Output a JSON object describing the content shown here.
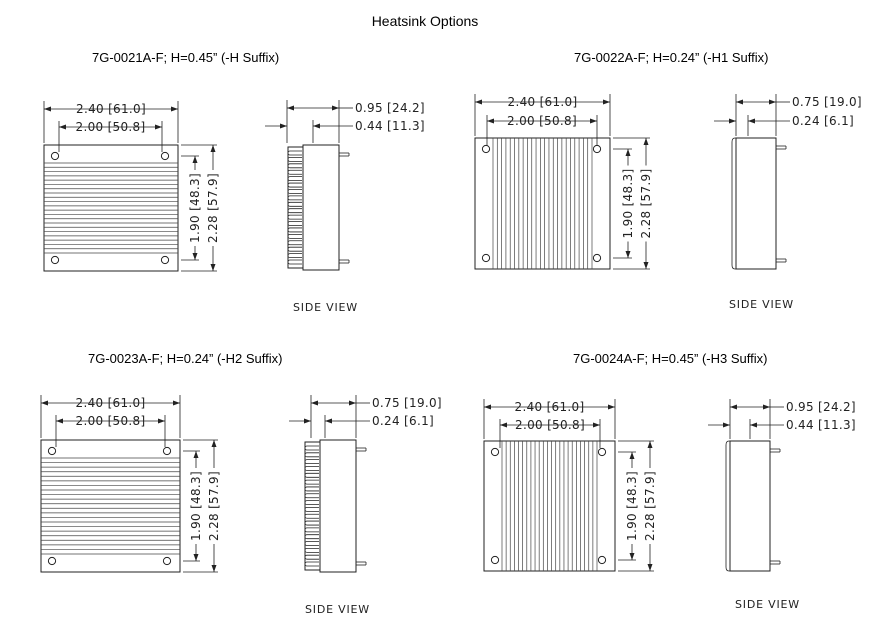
{
  "title": "Heatsink Options",
  "panels": [
    {
      "title": "7G-0021A-F; H=0.45” (-H Suffix)",
      "width_outer": "2.40 [61.0]",
      "width_inner": "2.00 [50.8]",
      "height_inner": "1.90 [48.3]",
      "height_outer": "2.28 [57.9]",
      "side_total": "0.95 [24.2]",
      "side_sink": "0.44 [11.3]",
      "side_label": "SIDE VIEW",
      "fin_orientation": "horizontal"
    },
    {
      "title": "7G-0022A-F; H=0.24” (-H1 Suffix)",
      "width_outer": "2.40 [61.0]",
      "width_inner": "2.00 [50.8]",
      "height_inner": "1.90 [48.3]",
      "height_outer": "2.28 [57.9]",
      "side_total": "0.75 [19.0]",
      "side_sink": "0.24 [6.1]",
      "side_label": "SIDE VIEW",
      "fin_orientation": "vertical"
    },
    {
      "title": "7G-0023A-F; H=0.24” (-H2 Suffix)",
      "width_outer": "2.40 [61.0]",
      "width_inner": "2.00 [50.8]",
      "height_inner": "1.90 [48.3]",
      "height_outer": "2.28 [57.9]",
      "side_total": "0.75 [19.0]",
      "side_sink": "0.24 [6.1]",
      "side_label": "SIDE VIEW",
      "fin_orientation": "horizontal"
    },
    {
      "title": "7G-0024A-F; H=0.45” (-H3 Suffix)",
      "width_outer": "2.40 [61.0]",
      "width_inner": "2.00 [50.8]",
      "height_inner": "1.90 [48.3]",
      "height_outer": "2.28 [57.9]",
      "side_total": "0.95 [24.2]",
      "side_sink": "0.44 [11.3]",
      "side_label": "SIDE VIEW",
      "fin_orientation": "vertical"
    }
  ]
}
